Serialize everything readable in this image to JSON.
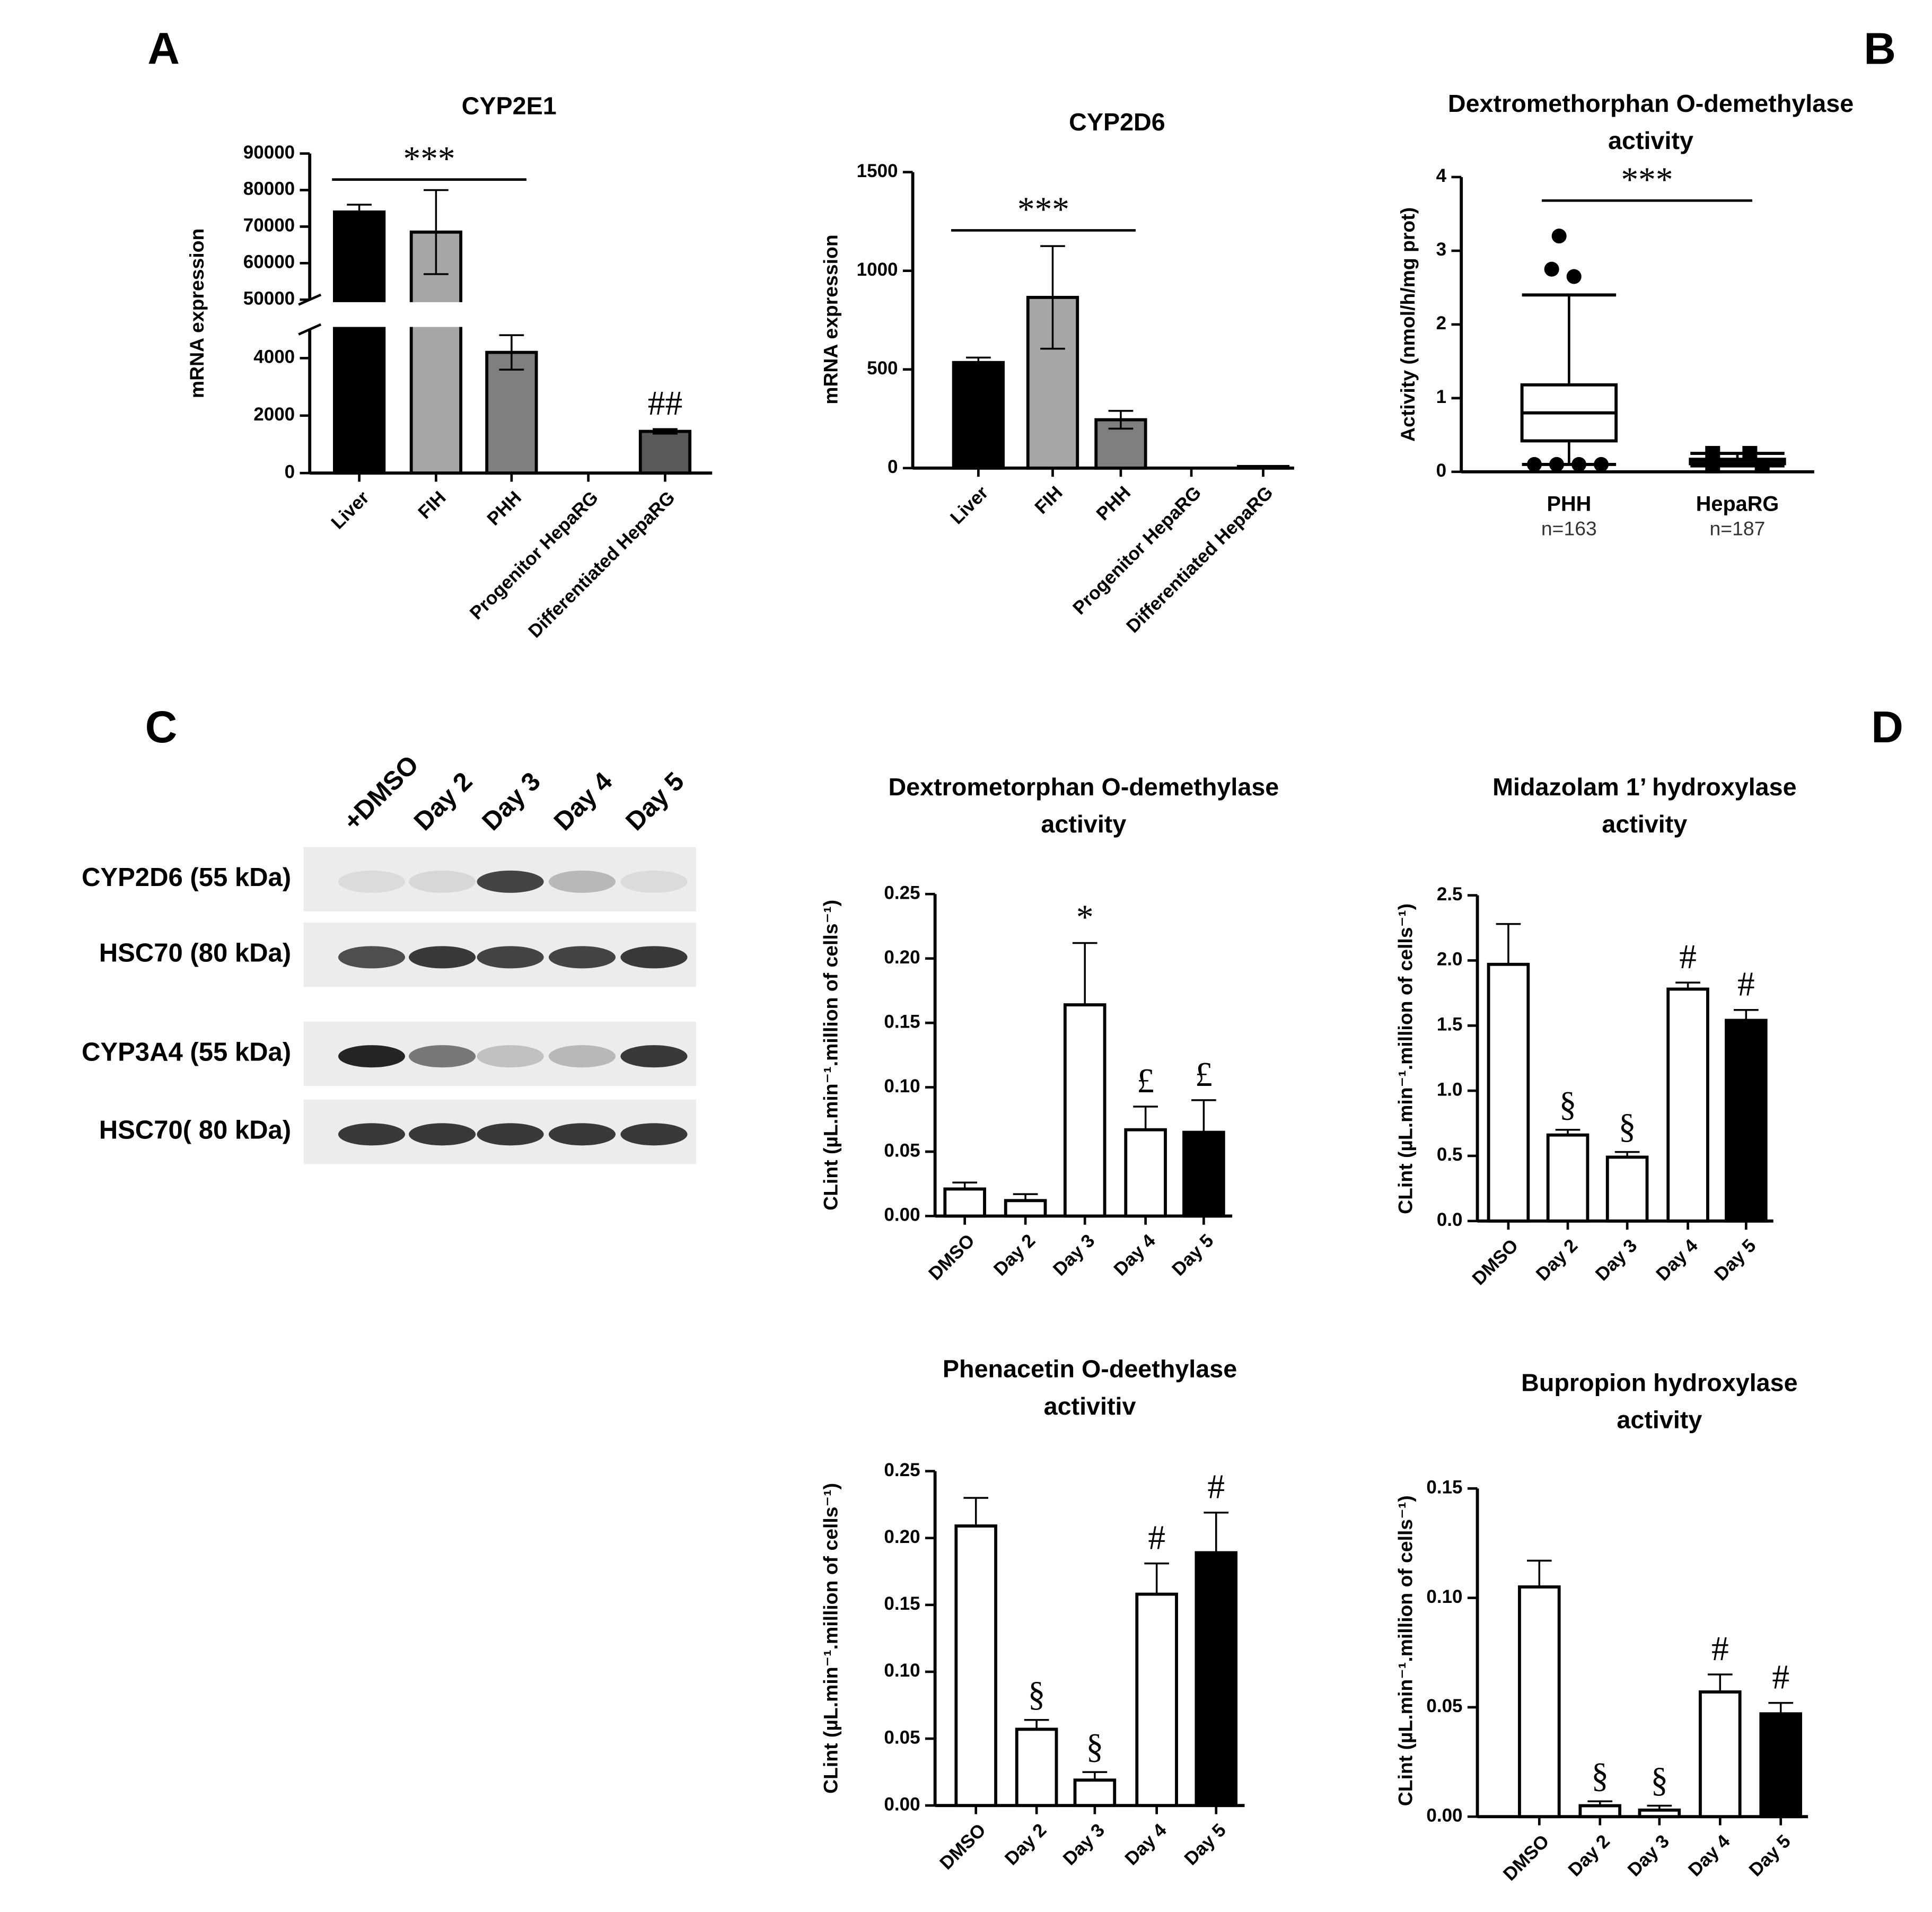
{
  "panel_labels": [
    "A",
    "B",
    "C",
    "D"
  ],
  "chart_data": [
    {
      "type": "bar",
      "title": [
        "CYP2E1"
      ],
      "ylabel": "mRNA expression",
      "categories": [
        "Liver",
        "FIH",
        "PHH",
        "Progenitor HepaRG",
        "Differentiated HepaRG"
      ],
      "values": [
        74000,
        68500,
        4200,
        0,
        1450
      ],
      "errors": [
        2000,
        11500,
        600,
        0,
        80
      ],
      "colors": [
        "#000000",
        "#a6a6a6",
        "#7f7f7f",
        "#595959",
        "#595959"
      ],
      "ylim": [
        0,
        90000
      ],
      "axis_break": [
        5000,
        50000
      ],
      "yticks": [
        0,
        2000,
        4000,
        50000,
        60000,
        70000,
        80000,
        90000
      ],
      "annotations": [
        {
          "text": "***",
          "from": "Liver",
          "to": "PHH"
        },
        {
          "text": "##",
          "at": "Differentiated HepaRG"
        }
      ]
    },
    {
      "type": "bar",
      "title": [
        "CYP2D6"
      ],
      "ylabel": "mRNA expression",
      "categories": [
        "Liver",
        "FIH",
        "PHH",
        "Progenitor HepaRG",
        "Differentiated HepaRG"
      ],
      "values": [
        535,
        865,
        245,
        0,
        8
      ],
      "errors": [
        25,
        260,
        45,
        0,
        3
      ],
      "colors": [
        "#000000",
        "#a6a6a6",
        "#7f7f7f",
        "#595959",
        "#595959"
      ],
      "ylim": [
        0,
        1500
      ],
      "yticks": [
        0,
        500,
        1000,
        1500
      ],
      "annotations": [
        {
          "text": "***",
          "from": "Liver",
          "to": "PHH"
        }
      ]
    },
    {
      "type": "box",
      "title": [
        "Dextromethorphan O-demethylase",
        "activity"
      ],
      "ylabel": "Activity (nmol/h/mg prot)",
      "categories": [
        "PHH",
        "HepaRG"
      ],
      "sample_sizes": [
        "n=163",
        "n=187"
      ],
      "markers": [
        "circle",
        "square"
      ],
      "boxes": [
        {
          "min": 0.1,
          "q1": 0.42,
          "median": 0.8,
          "q3": 1.18,
          "max": 2.4,
          "outliers": [
            3.2,
            2.75,
            2.65,
            0.1,
            0.1,
            0.1,
            0.1
          ]
        },
        {
          "min": 0.08,
          "q1": 0.11,
          "median": 0.15,
          "q3": 0.17,
          "max": 0.25,
          "outliers": [
            0.25,
            0.25,
            0.08,
            0.08
          ]
        }
      ],
      "ylim": [
        0,
        4
      ],
      "yticks": [
        0,
        1,
        2,
        3,
        4
      ],
      "annotations": [
        {
          "text": "***",
          "from": "PHH",
          "to": "HepaRG"
        }
      ]
    },
    {
      "type": "bar",
      "title": [
        "Dextrometorphan O-demethylase",
        "activity"
      ],
      "ylabel": "CLint (µL.min⁻¹.million of cells⁻¹)",
      "categories": [
        "DMSO",
        "Day 2",
        "Day 3",
        "Day 4",
        "Day 5"
      ],
      "values": [
        0.021,
        0.012,
        0.164,
        0.067,
        0.065
      ],
      "errors": [
        0.005,
        0.005,
        0.048,
        0.018,
        0.025
      ],
      "colors": [
        "#ffffff",
        "#ffffff",
        "#ffffff",
        "#ffffff",
        "#000000"
      ],
      "ylim": [
        0,
        0.25
      ],
      "yticks": [
        {
          "value": 0,
          "label": "0.00"
        },
        {
          "value": 0.05,
          "label": "0.05"
        },
        {
          "value": 0.1,
          "label": "0.10"
        },
        {
          "value": 0.15,
          "label": "0.15"
        },
        {
          "value": 0.2,
          "label": "0.20"
        },
        {
          "value": 0.25,
          "label": "0.25"
        }
      ],
      "annotations": [
        {
          "text": "*",
          "at": "Day 3"
        },
        {
          "text": "£",
          "at": "Day 4"
        },
        {
          "text": "£",
          "at": "Day 5"
        }
      ]
    },
    {
      "type": "bar",
      "title": [
        "Midazolam 1’ hydroxylase",
        "activity"
      ],
      "ylabel": "CLint (µL.min⁻¹.million of cells⁻¹)",
      "categories": [
        "DMSO",
        "Day 2",
        "Day 3",
        "Day 4",
        "Day 5"
      ],
      "values": [
        1.97,
        0.66,
        0.49,
        1.78,
        1.54
      ],
      "errors": [
        0.31,
        0.04,
        0.04,
        0.05,
        0.08
      ],
      "colors": [
        "#ffffff",
        "#ffffff",
        "#ffffff",
        "#ffffff",
        "#000000"
      ],
      "ylim": [
        0,
        2.5
      ],
      "yticks": [
        {
          "value": 0,
          "label": "0.0"
        },
        {
          "value": 0.5,
          "label": "0.5"
        },
        {
          "value": 1,
          "label": "1.0"
        },
        {
          "value": 1.5,
          "label": "1.5"
        },
        {
          "value": 2,
          "label": "2.0"
        },
        {
          "value": 2.5,
          "label": "2.5"
        }
      ],
      "annotations": [
        {
          "text": "§",
          "at": "Day 2"
        },
        {
          "text": "§",
          "at": "Day 3"
        },
        {
          "text": "#",
          "at": "Day 4"
        },
        {
          "text": "#",
          "at": "Day 5"
        }
      ]
    },
    {
      "type": "bar",
      "title": [
        "Phenacetin O-deethylase",
        "activitiv"
      ],
      "ylabel": "CLint (µL.min⁻¹.million of cells⁻¹)",
      "categories": [
        "DMSO",
        "Day 2",
        "Day 3",
        "Day 4",
        "Day 5"
      ],
      "values": [
        0.209,
        0.057,
        0.019,
        0.158,
        0.189
      ],
      "errors": [
        0.021,
        0.007,
        0.006,
        0.023,
        0.03
      ],
      "colors": [
        "#ffffff",
        "#ffffff",
        "#ffffff",
        "#ffffff",
        "#000000"
      ],
      "ylim": [
        0,
        0.25
      ],
      "yticks": [
        {
          "value": 0,
          "label": "0.00"
        },
        {
          "value": 0.05,
          "label": "0.05"
        },
        {
          "value": 0.1,
          "label": "0.10"
        },
        {
          "value": 0.15,
          "label": "0.15"
        },
        {
          "value": 0.2,
          "label": "0.20"
        },
        {
          "value": 0.25,
          "label": "0.25"
        }
      ],
      "annotations": [
        {
          "text": "§",
          "at": "Day 2"
        },
        {
          "text": "§",
          "at": "Day 3"
        },
        {
          "text": "#",
          "at": "Day 4"
        },
        {
          "text": "#",
          "at": "Day 5"
        }
      ]
    },
    {
      "type": "bar",
      "title": [
        "Bupropion hydroxylase",
        "activity"
      ],
      "ylabel": "CLint (µL.min⁻¹.million of cells⁻¹)",
      "categories": [
        "DMSO",
        "Day 2",
        "Day 3",
        "Day 4",
        "Day 5"
      ],
      "values": [
        0.105,
        0.005,
        0.003,
        0.057,
        0.047
      ],
      "errors": [
        0.012,
        0.002,
        0.002,
        0.008,
        0.005
      ],
      "colors": [
        "#ffffff",
        "#ffffff",
        "#ffffff",
        "#ffffff",
        "#000000"
      ],
      "ylim": [
        0,
        0.15
      ],
      "yticks": [
        {
          "value": 0,
          "label": "0.00"
        },
        {
          "value": 0.05,
          "label": "0.05"
        },
        {
          "value": 0.1,
          "label": "0.10"
        },
        {
          "value": 0.15,
          "label": "0.15"
        }
      ],
      "annotations": [
        {
          "text": "§",
          "at": "Day 2"
        },
        {
          "text": "§",
          "at": "Day 3"
        },
        {
          "text": "#",
          "at": "Day 4"
        },
        {
          "text": "#",
          "at": "Day 5"
        }
      ]
    }
  ],
  "blot": {
    "lanes": [
      "+DMSO",
      "Day 2",
      "Day 3",
      "Day 4",
      "Day 5"
    ],
    "rows": [
      "CYP2D6 (55 kDa)",
      "HSC70 (80 kDa)",
      "CYP3A4 (55 kDa)",
      "HSC70( 80 kDa)"
    ]
  }
}
